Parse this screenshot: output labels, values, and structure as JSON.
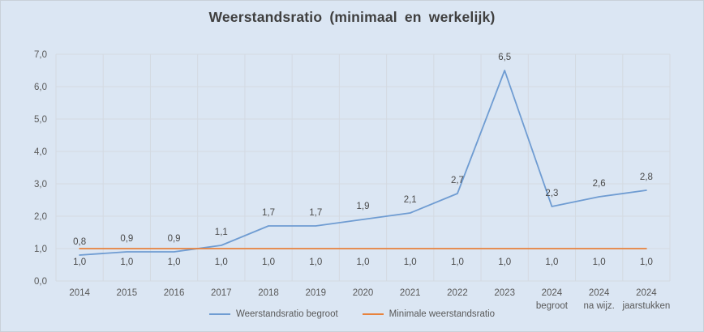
{
  "title": "Weerstandsratio (minimaal en werkelijk)",
  "colors": {
    "background": "#dbe6f3",
    "frame_border": "#c9d0d9",
    "gridline": "#d4dae2",
    "axis_text": "#595959",
    "label_text": "#4a4a4a",
    "title_text": "#3f3f3f",
    "series_blue": "#6f9cd2",
    "series_orange": "#e8823c"
  },
  "chart_data": {
    "type": "line",
    "title": "Weerstandsratio (minimaal en werkelijk)",
    "categories": [
      "2014",
      "2015",
      "2016",
      "2017",
      "2018",
      "2019",
      "2020",
      "2021",
      "2022",
      "2023",
      "2024\nbegroot",
      "2024\nna wijz.",
      "2024\njaarstukken"
    ],
    "series": [
      {
        "name": "Weerstandsratio begroot",
        "color": "#6f9cd2",
        "values": [
          0.8,
          0.9,
          0.9,
          1.1,
          1.7,
          1.7,
          1.9,
          2.1,
          2.7,
          6.5,
          2.3,
          2.6,
          2.8
        ],
        "data_labels": [
          "0,8",
          "0,9",
          "0,9",
          "1,1",
          "1,7",
          "1,7",
          "1,9",
          "2,1",
          "2,7",
          "6,5",
          "2,3",
          "2,6",
          "2,8"
        ],
        "label_position": "above"
      },
      {
        "name": "Minimale weerstandsratio",
        "color": "#e8823c",
        "values": [
          1.0,
          1.0,
          1.0,
          1.0,
          1.0,
          1.0,
          1.0,
          1.0,
          1.0,
          1.0,
          1.0,
          1.0,
          1.0
        ],
        "data_labels": [
          "1,0",
          "1,0",
          "1,0",
          "1,0",
          "1,0",
          "1,0",
          "1,0",
          "1,0",
          "1,0",
          "1,0",
          "1,0",
          "1,0",
          "1,0"
        ],
        "label_position": "below"
      }
    ],
    "xlabel": "",
    "ylabel": "",
    "ylim": [
      0,
      7
    ],
    "y_tick_step": 1,
    "y_tick_labels": [
      "0,0",
      "1,0",
      "2,0",
      "3,0",
      "4,0",
      "5,0",
      "6,0",
      "7,0"
    ],
    "grid": true,
    "legend_position": "bottom",
    "decimal_separator": ","
  }
}
